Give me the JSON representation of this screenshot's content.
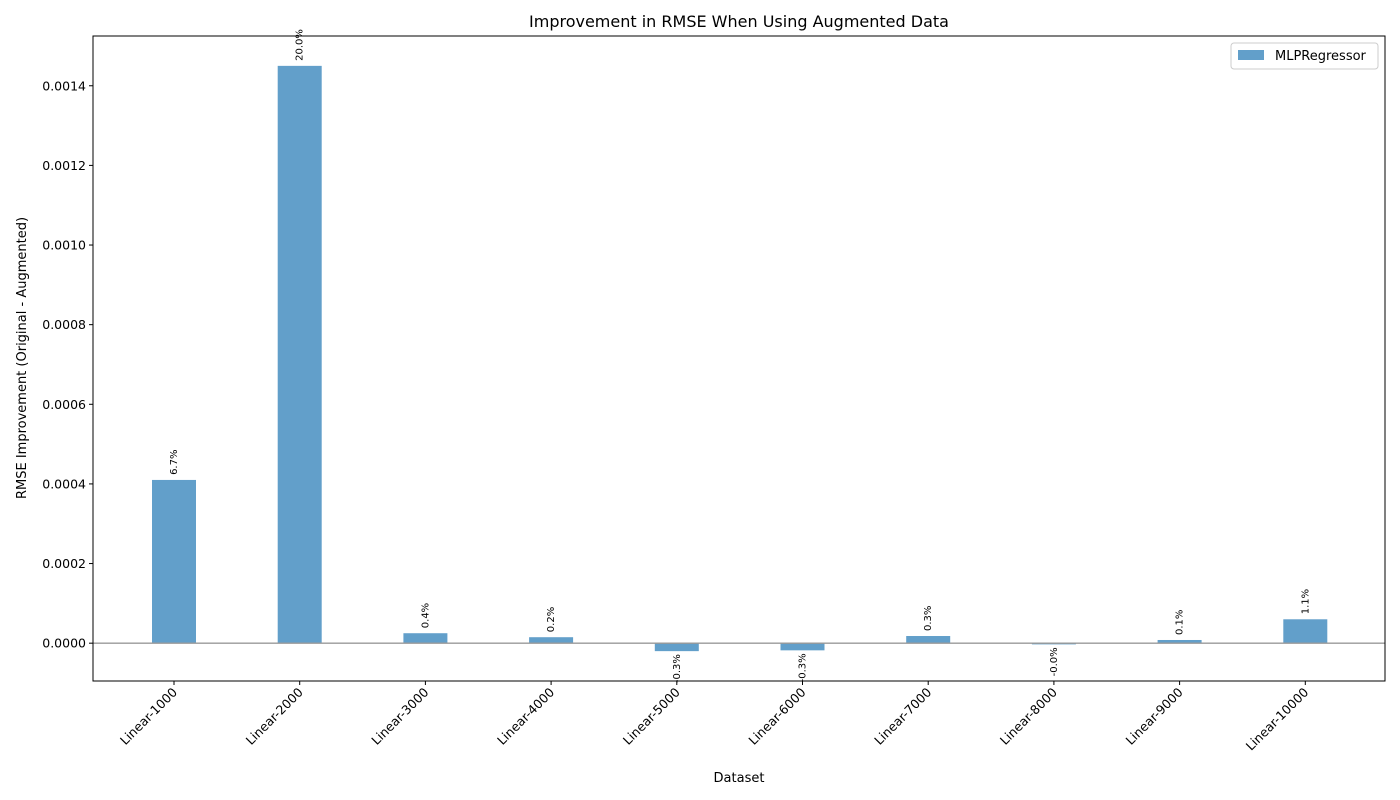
{
  "chart_data": {
    "type": "bar",
    "title": "Improvement in RMSE When Using Augmented Data",
    "xlabel": "Dataset",
    "ylabel": "RMSE Improvement (Original - Augmented)",
    "categories": [
      "Linear-1000",
      "Linear-2000",
      "Linear-3000",
      "Linear-4000",
      "Linear-5000",
      "Linear-6000",
      "Linear-7000",
      "Linear-8000",
      "Linear-9000",
      "Linear-10000"
    ],
    "series": [
      {
        "name": "MLPRegressor",
        "values": [
          0.00041,
          0.00145,
          2.5e-05,
          1.5e-05,
          -2e-05,
          -1.8e-05,
          1.8e-05,
          -3e-06,
          8e-06,
          6e-05
        ],
        "labels": [
          "6.7%",
          "20.0%",
          "0.4%",
          "0.2%",
          "-0.3%",
          "-0.3%",
          "0.3%",
          "-0.0%",
          "0.1%",
          "1.1%"
        ],
        "color": "#629fca"
      }
    ],
    "ylim": [
      -9.5e-05,
      0.001525
    ],
    "yticks": [
      0,
      0.0002,
      0.0004,
      0.0006,
      0.0008,
      0.001,
      0.0012,
      0.0014
    ],
    "ytick_labels": [
      "0.0000",
      "0.0002",
      "0.0004",
      "0.0006",
      "0.0008",
      "0.0010",
      "0.0012",
      "0.0014"
    ],
    "legend_position": "top-right",
    "grid": false,
    "zero_line_color": "#999999"
  }
}
